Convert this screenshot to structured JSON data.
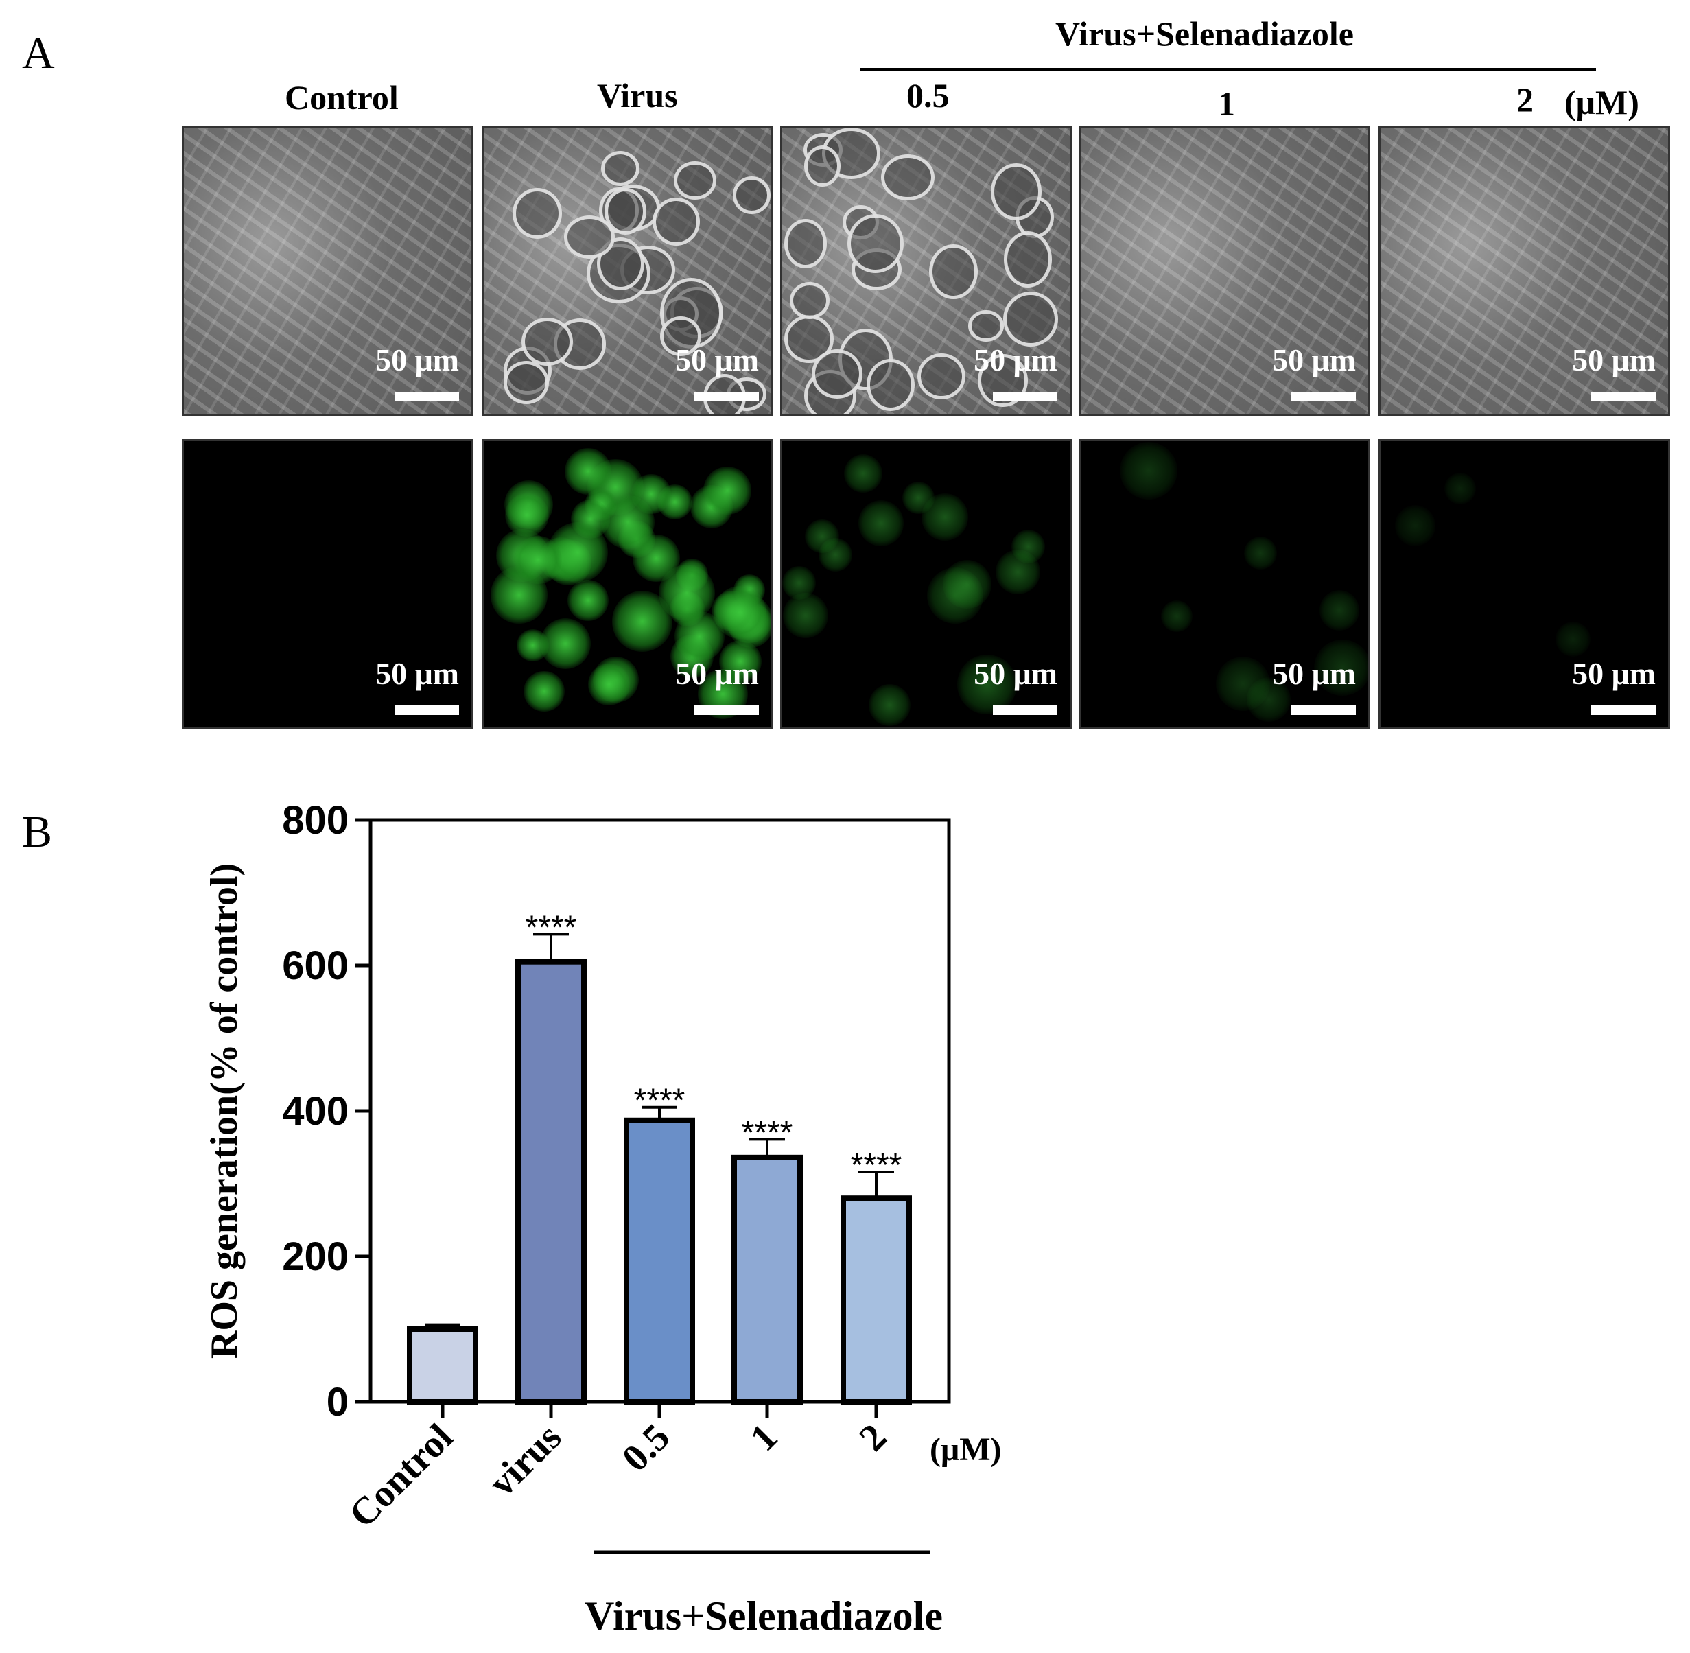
{
  "panel_a": {
    "letter": "A",
    "group_label": "Virus+Selenadiazole",
    "unit": "(μM)",
    "columns": [
      "Control",
      "Virus",
      "0.5",
      "1",
      "2"
    ],
    "scale_bar_label": "50 μm",
    "fluorescence_intensity": [
      0.0,
      0.95,
      0.35,
      0.18,
      0.08
    ],
    "colors": {
      "fluorescence": "#2fbf2f",
      "brightfield": "#7a7a7a"
    }
  },
  "panel_b": {
    "letter": "B",
    "chart_data": {
      "type": "bar",
      "categories": [
        "Control",
        "virus",
        "0.5",
        "1",
        "2"
      ],
      "values": [
        100,
        605,
        387,
        336,
        280
      ],
      "errors": [
        6,
        38,
        18,
        25,
        36
      ],
      "significance": [
        "",
        "****",
        "****",
        "****",
        "****"
      ],
      "ylabel": "ROS generation(% of control)",
      "xlabel": "Virus+Selenadiazole",
      "x_unit": "(μM)",
      "ylim": [
        0,
        800
      ],
      "yticks": [
        0,
        200,
        400,
        600,
        800
      ],
      "colors": [
        "#c9d2e6",
        "#7184b8",
        "#6a8fc8",
        "#8ea9d4",
        "#a6bfe0"
      ],
      "grid": false
    }
  }
}
